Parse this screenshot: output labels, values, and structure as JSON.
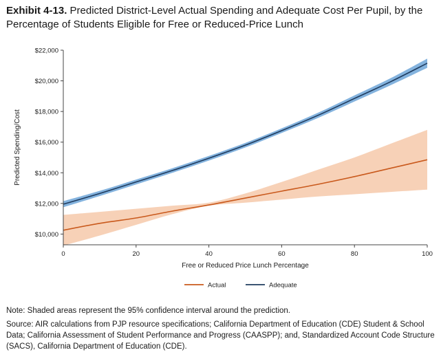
{
  "header": {
    "exhibit_label": "Exhibit 4-13.",
    "title_text": "Predicted District-Level Actual Spending and Adequate Cost Per Pupil, by the Percentage of Students Eligible for Free or Reduced-Price Lunch"
  },
  "footer": {
    "note": "Note: Shaded areas represent the 95% confidence interval around the prediction.",
    "source": "Source: AIR calculations from PJP resource specifications; California Department of Education (CDE) Student & School Data; California Assessment of Student Performance and Progress (CAASPP); and, Standardized Account Code Structure (SACS), California Department of Education (CDE)."
  },
  "chart_data": {
    "type": "line",
    "xlabel": "Free or Reduced Price Lunch Percentage",
    "ylabel": "Predicted Spending/Cost",
    "xlim": [
      0,
      100
    ],
    "ylim": [
      9300,
      22000
    ],
    "x_ticks": [
      0,
      20,
      40,
      60,
      80,
      100
    ],
    "y_ticks": [
      10000,
      12000,
      14000,
      16000,
      18000,
      20000,
      22000
    ],
    "y_tick_labels": [
      "$10,000",
      "$12,000",
      "$14,000",
      "$16,000",
      "$18,000",
      "$20,000",
      "$22,000"
    ],
    "legend_position": "bottom",
    "grid": false,
    "x": [
      0,
      10,
      20,
      30,
      40,
      50,
      60,
      70,
      80,
      90,
      100
    ],
    "series": [
      {
        "name": "Actual",
        "color": "#c9591c",
        "band_color": "#f6c9aa",
        "values": [
          10250,
          10700,
          11050,
          11500,
          11900,
          12350,
          12800,
          13250,
          13750,
          14300,
          14850
        ],
        "lower": [
          9250,
          9900,
          10600,
          11300,
          11850,
          12050,
          12250,
          12450,
          12600,
          12750,
          12900
        ],
        "upper": [
          11250,
          11450,
          11650,
          11850,
          12050,
          12650,
          13400,
          14200,
          15000,
          15900,
          16800
        ]
      },
      {
        "name": "Adequate",
        "color": "#1f3b5e",
        "band_color": "#6ea6d8",
        "values": [
          11950,
          12650,
          13400,
          14150,
          14950,
          15800,
          16750,
          17750,
          18850,
          19950,
          21150
        ],
        "lower": [
          11750,
          12480,
          13240,
          14000,
          14800,
          15650,
          16600,
          17580,
          18650,
          19720,
          20850
        ],
        "upper": [
          12150,
          12820,
          13560,
          14300,
          15100,
          15950,
          16900,
          17920,
          19050,
          20180,
          21450
        ]
      }
    ]
  }
}
